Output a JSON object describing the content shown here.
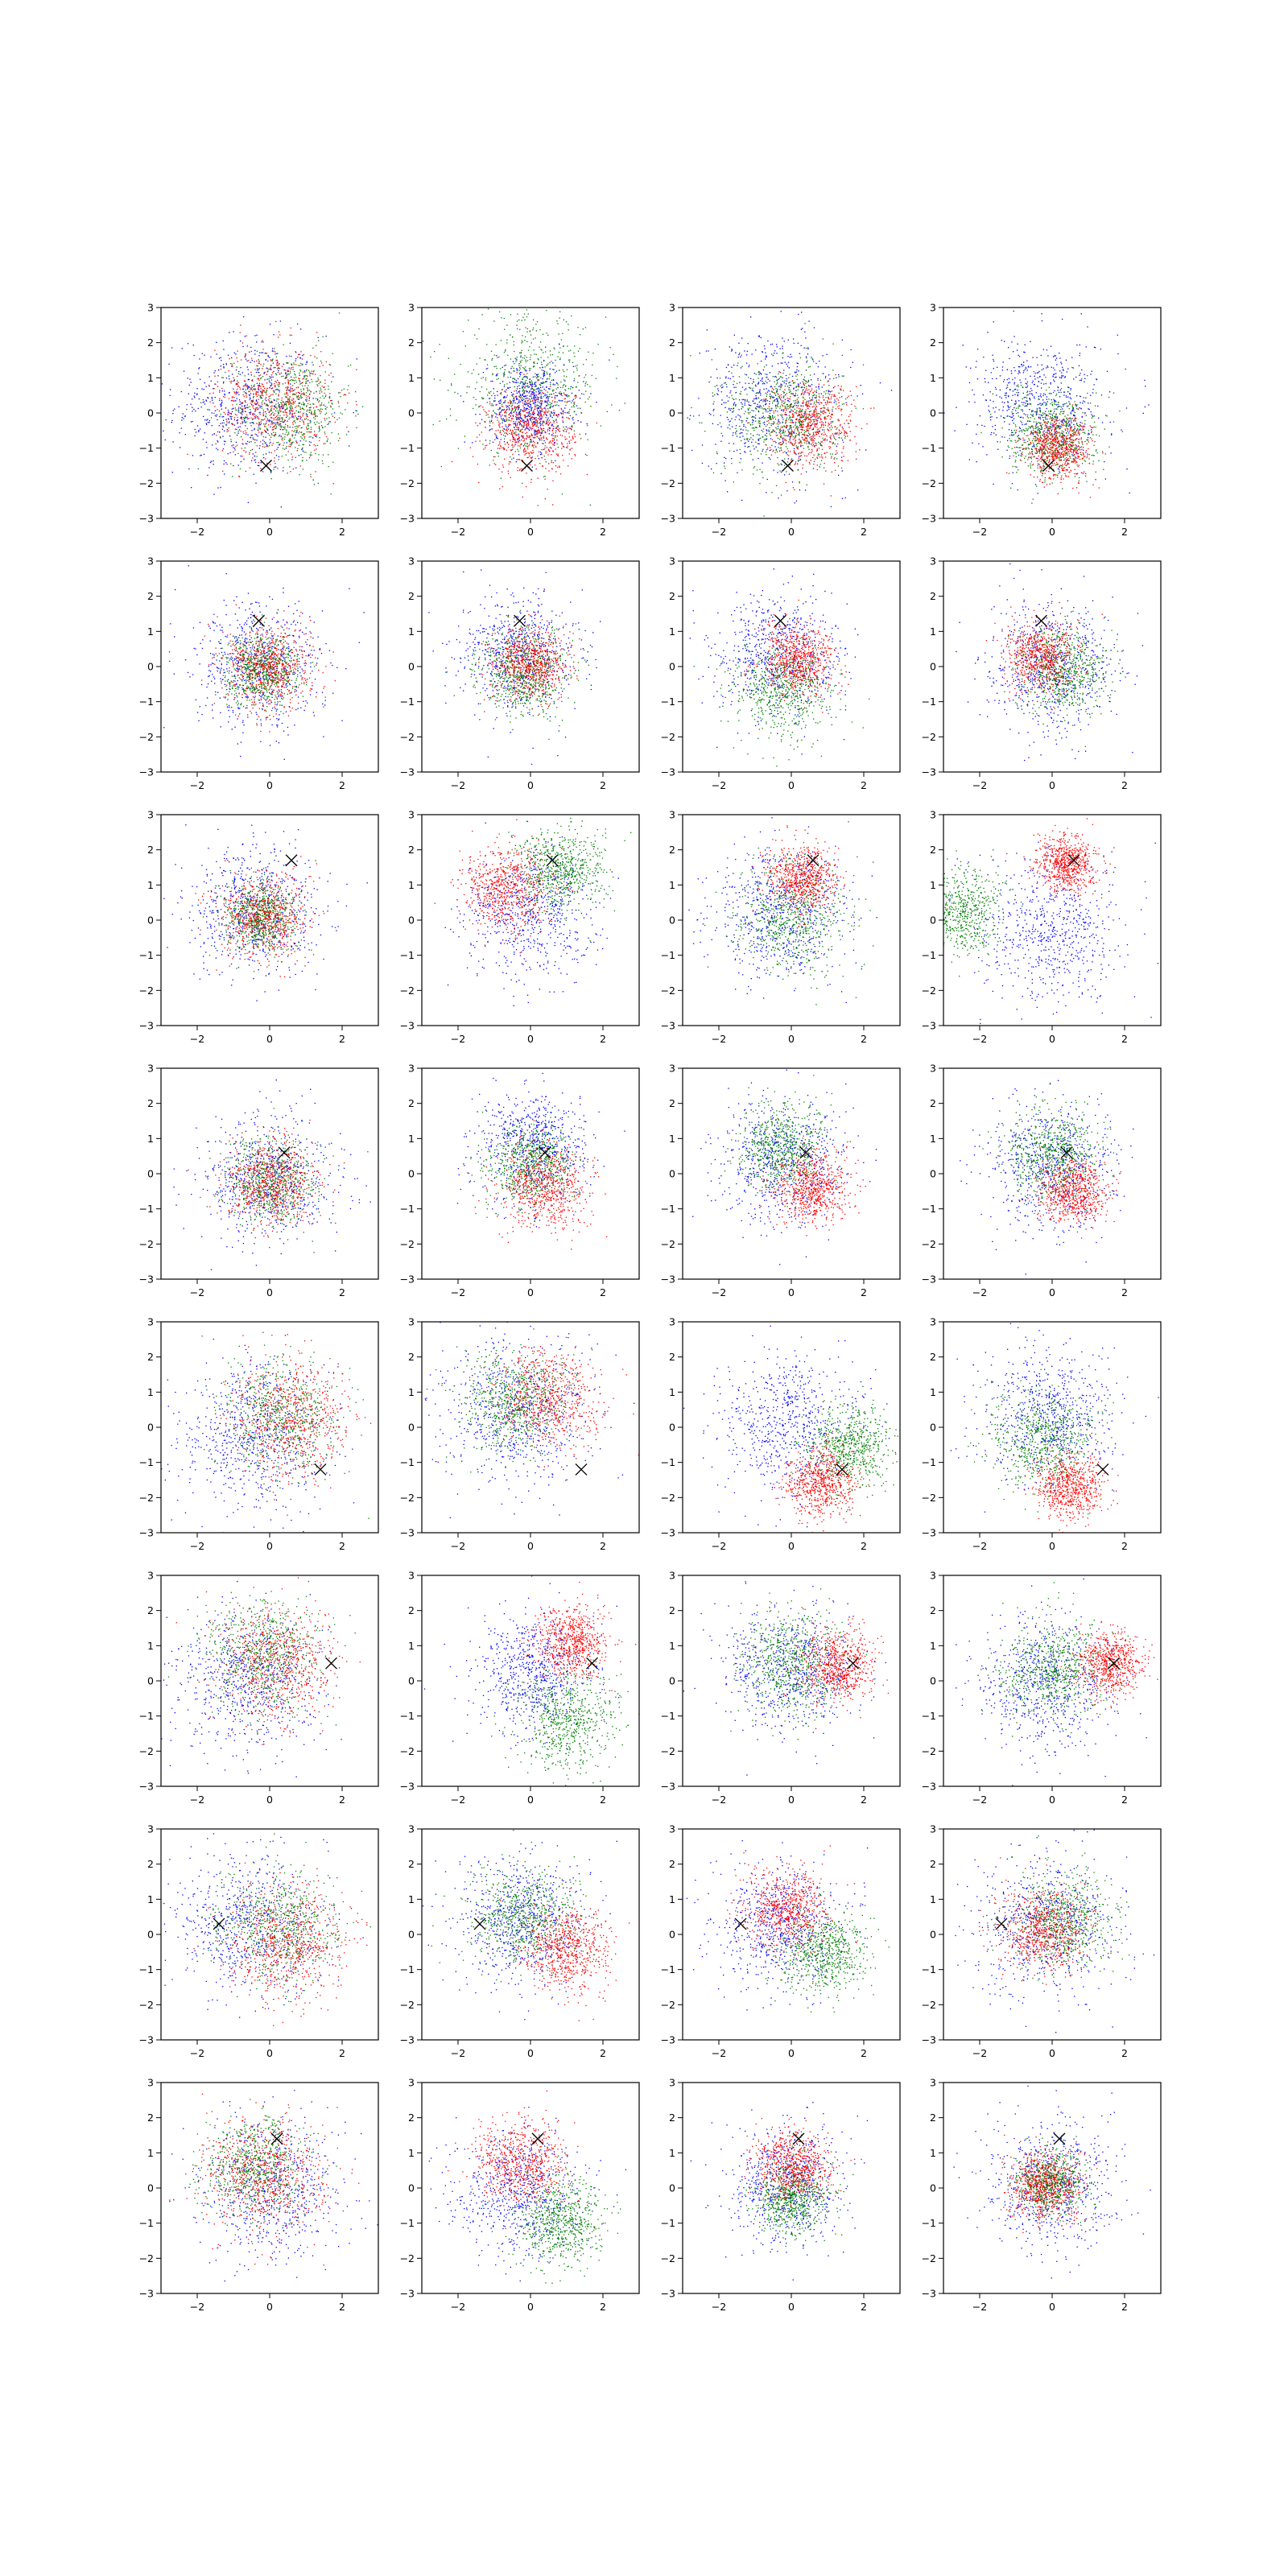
{
  "figure": {
    "rows": 8,
    "cols": 4,
    "points_per_series": 650
  },
  "colors": {
    "red": "#ff0000",
    "green": "#008000",
    "blue": "#0000ff",
    "marker": "#000000"
  },
  "chart_data": {
    "type": "scatter",
    "layout": "8x4 grid of subplots",
    "xlim": [
      -3,
      3
    ],
    "ylim": [
      -3,
      3
    ],
    "xticks": [
      -2,
      0,
      2
    ],
    "yticks": [
      -3,
      -2,
      -1,
      0,
      1,
      2,
      3
    ],
    "xtick_labels": [
      "−2",
      "0",
      "2"
    ],
    "ytick_labels": [
      "−3",
      "−2",
      "−1",
      "0",
      "1",
      "2",
      "3"
    ],
    "grid": false,
    "legend": "none",
    "series_colors": [
      "blue",
      "red",
      "green"
    ],
    "marker_symbol": "x",
    "rows": [
      {
        "marker": [
          -0.1,
          -1.5
        ],
        "panels": [
          {
            "blue": [
              -0.6,
              0.2,
              1.0
            ],
            "red": [
              0.1,
              0.3,
              0.8
            ],
            "green": [
              0.6,
              0.1,
              0.8
            ]
          },
          {
            "blue": [
              0.0,
              0.2,
              0.6
            ],
            "red": [
              0.0,
              -0.5,
              0.6
            ],
            "green": [
              0.0,
              0.8,
              1.0
            ]
          },
          {
            "blue": [
              -0.5,
              0.3,
              1.0
            ],
            "red": [
              0.5,
              -0.3,
              0.6
            ],
            "green": [
              -0.2,
              -0.1,
              0.8
            ]
          },
          {
            "blue": [
              -0.3,
              0.3,
              0.9
            ],
            "red": [
              0.2,
              -1.0,
              0.45
            ],
            "green": [
              0.0,
              -0.6,
              0.6
            ]
          }
        ]
      },
      {
        "marker": [
          -0.3,
          1.3
        ],
        "panels": [
          {
            "blue": [
              -0.3,
              0.0,
              0.9
            ],
            "red": [
              0.0,
              0.0,
              0.6
            ],
            "green": [
              -0.2,
              -0.1,
              0.5
            ]
          },
          {
            "blue": [
              -0.3,
              0.4,
              0.8
            ],
            "red": [
              0.0,
              0.1,
              0.5
            ],
            "green": [
              -0.2,
              -0.2,
              0.6
            ]
          },
          {
            "blue": [
              -0.4,
              0.3,
              0.9
            ],
            "red": [
              0.2,
              0.2,
              0.5
            ],
            "green": [
              -0.2,
              -0.7,
              0.7
            ]
          },
          {
            "blue": [
              0.0,
              0.0,
              0.9
            ],
            "red": [
              -0.3,
              0.3,
              0.5
            ],
            "green": [
              0.3,
              -0.1,
              0.6
            ]
          }
        ]
      },
      {
        "marker": [
          0.6,
          1.7
        ],
        "panels": [
          {
            "blue": [
              -0.4,
              0.3,
              0.9
            ],
            "red": [
              -0.2,
              0.1,
              0.6
            ],
            "green": [
              -0.3,
              0.1,
              0.5
            ]
          },
          {
            "blue": [
              0.0,
              0.1,
              0.9
            ],
            "red": [
              -0.7,
              0.9,
              0.6
            ],
            "green": [
              0.8,
              1.4,
              0.6
            ]
          },
          {
            "blue": [
              -0.3,
              0.2,
              0.9
            ],
            "red": [
              0.3,
              1.2,
              0.45
            ],
            "green": [
              0.0,
              0.1,
              0.8
            ]
          },
          {
            "blue": [
              0.0,
              -0.3,
              1.0
            ],
            "red": [
              0.4,
              1.6,
              0.4
            ],
            "green": [
              -2.6,
              0.2,
              0.6
            ]
          }
        ]
      },
      {
        "marker": [
          0.4,
          0.6
        ],
        "panels": [
          {
            "blue": [
              0.0,
              -0.1,
              0.9
            ],
            "red": [
              0.1,
              -0.3,
              0.6
            ],
            "green": [
              0.0,
              -0.3,
              0.6
            ]
          },
          {
            "blue": [
              0.1,
              0.8,
              0.8
            ],
            "red": [
              0.4,
              -0.4,
              0.6
            ],
            "green": [
              0.0,
              0.3,
              0.6
            ]
          },
          {
            "blue": [
              -0.2,
              0.4,
              0.9
            ],
            "red": [
              0.6,
              -0.4,
              0.5
            ],
            "green": [
              -0.3,
              0.7,
              0.6
            ]
          },
          {
            "blue": [
              0.0,
              0.2,
              0.9
            ],
            "red": [
              0.6,
              -0.5,
              0.45
            ],
            "green": [
              0.0,
              0.6,
              0.6
            ]
          }
        ]
      },
      {
        "marker": [
          1.4,
          -1.2
        ],
        "panels": [
          {
            "blue": [
              -0.5,
              -0.2,
              1.0
            ],
            "red": [
              0.6,
              0.2,
              0.8
            ],
            "green": [
              0.3,
              0.3,
              0.8
            ]
          },
          {
            "blue": [
              -0.4,
              0.3,
              1.0
            ],
            "red": [
              0.5,
              0.8,
              0.7
            ],
            "green": [
              -0.5,
              0.7,
              0.7
            ]
          },
          {
            "blue": [
              -0.1,
              0.1,
              1.0
            ],
            "red": [
              0.8,
              -1.6,
              0.5
            ],
            "green": [
              1.6,
              -0.6,
              0.6
            ]
          },
          {
            "blue": [
              -0.1,
              0.4,
              0.9
            ],
            "red": [
              0.5,
              -1.7,
              0.45
            ],
            "green": [
              -0.3,
              -0.4,
              0.7
            ]
          }
        ]
      },
      {
        "marker": [
          1.7,
          0.5
        ],
        "panels": [
          {
            "blue": [
              -0.6,
              -0.1,
              1.0
            ],
            "red": [
              0.1,
              0.5,
              0.8
            ],
            "green": [
              -0.2,
              0.7,
              0.8
            ]
          },
          {
            "blue": [
              0.1,
              0.2,
              0.8
            ],
            "red": [
              1.1,
              1.1,
              0.5
            ],
            "green": [
              1.0,
              -1.1,
              0.7
            ]
          },
          {
            "blue": [
              -0.1,
              0.3,
              0.9
            ],
            "red": [
              1.3,
              0.4,
              0.5
            ],
            "green": [
              0.0,
              0.5,
              0.7
            ]
          },
          {
            "blue": [
              -0.2,
              -0.1,
              0.9
            ],
            "red": [
              1.6,
              0.5,
              0.45
            ],
            "green": [
              0.0,
              0.3,
              0.7
            ]
          }
        ]
      },
      {
        "marker": [
          -1.4,
          0.3
        ],
        "panels": [
          {
            "blue": [
              -0.6,
              0.3,
              1.0
            ],
            "red": [
              0.5,
              -0.3,
              0.8
            ],
            "green": [
              0.2,
              0.2,
              0.8
            ]
          },
          {
            "blue": [
              -0.3,
              0.5,
              0.9
            ],
            "red": [
              1.0,
              -0.4,
              0.6
            ],
            "green": [
              -0.2,
              0.5,
              0.7
            ]
          },
          {
            "blue": [
              -0.3,
              0.2,
              0.9
            ],
            "red": [
              -0.1,
              0.7,
              0.6
            ],
            "green": [
              0.9,
              -0.5,
              0.6
            ]
          },
          {
            "blue": [
              -0.2,
              0.3,
              1.0
            ],
            "red": [
              -0.2,
              0.1,
              0.6
            ],
            "green": [
              0.3,
              0.4,
              0.7
            ]
          }
        ]
      },
      {
        "marker": [
          0.2,
          1.4
        ],
        "panels": [
          {
            "blue": [
              0.0,
              0.0,
              1.0
            ],
            "red": [
              -0.2,
              0.4,
              0.8
            ],
            "green": [
              -0.4,
              0.6,
              0.7
            ]
          },
          {
            "blue": [
              -0.3,
              -0.1,
              0.9
            ],
            "red": [
              -0.3,
              0.7,
              0.6
            ],
            "green": [
              0.8,
              -1.0,
              0.6
            ]
          },
          {
            "blue": [
              -0.1,
              0.1,
              0.8
            ],
            "red": [
              0.0,
              0.6,
              0.5
            ],
            "green": [
              0.0,
              -0.3,
              0.5
            ]
          },
          {
            "blue": [
              0.0,
              0.1,
              0.9
            ],
            "red": [
              -0.2,
              0.1,
              0.5
            ],
            "green": [
              0.0,
              0.1,
              0.45
            ]
          }
        ]
      }
    ]
  }
}
